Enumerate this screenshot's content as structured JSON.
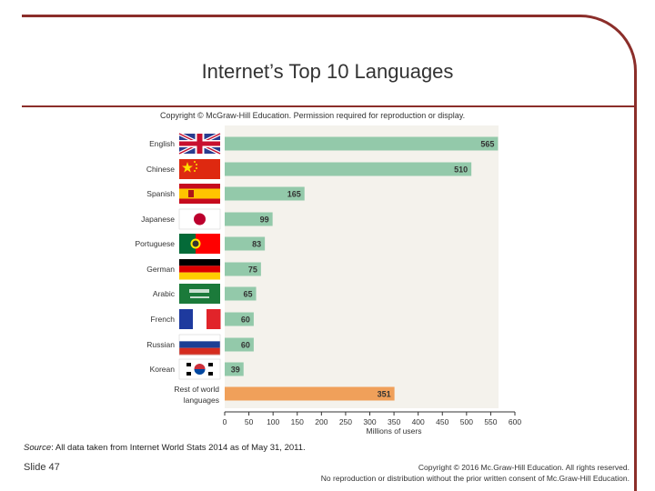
{
  "slide": {
    "title": "Internet’s Top 10 Languages",
    "source_label": "Source",
    "source_text": ": All data taken from Internet World Stats 2014 as of May 31, 2011.",
    "slide_number": "Slide 47",
    "copyright_line1": "Copyright © 2016 Mc.Graw-Hill Education. All rights reserved.",
    "copyright_line2": "No reproduction or distribution without the prior written consent of Mc.Graw-Hill Education."
  },
  "chart_data": {
    "type": "bar",
    "orientation": "horizontal",
    "copyright": "Copyright © McGraw-Hill Education. Permission required for reproduction or display.",
    "categories": [
      "English",
      "Chinese",
      "Spanish",
      "Japanese",
      "Portuguese",
      "German",
      "Arabic",
      "French",
      "Russian",
      "Korean",
      "Rest of world languages"
    ],
    "category_lines": [
      [
        "English"
      ],
      [
        "Chinese"
      ],
      [
        "Spanish"
      ],
      [
        "Japanese"
      ],
      [
        "Portuguese"
      ],
      [
        "German"
      ],
      [
        "Arabic"
      ],
      [
        "French"
      ],
      [
        "Russian"
      ],
      [
        "Korean"
      ],
      [
        "Rest of world",
        "languages"
      ]
    ],
    "values": [
      565,
      510,
      165,
      99,
      83,
      75,
      65,
      60,
      60,
      39,
      351
    ],
    "flags": [
      "uk-flag-icon",
      "china-flag-icon",
      "spain-flag-icon",
      "japan-flag-icon",
      "portugal-flag-icon",
      "germany-flag-icon",
      "saudi-arabia-flag-icon",
      "france-flag-icon",
      "russia-flag-icon",
      "korea-flag-icon",
      null
    ],
    "bar_colors": [
      "#93c9aa",
      "#93c9aa",
      "#93c9aa",
      "#93c9aa",
      "#93c9aa",
      "#93c9aa",
      "#93c9aa",
      "#93c9aa",
      "#93c9aa",
      "#93c9aa",
      "#f0a05a"
    ],
    "xlabel": "Millions of users",
    "xlim": [
      0,
      600
    ],
    "xticks": [
      0,
      50,
      100,
      150,
      200,
      250,
      300,
      350,
      400,
      450,
      500,
      550,
      600
    ],
    "grid": false,
    "plot_background": "#f4f2ec"
  }
}
